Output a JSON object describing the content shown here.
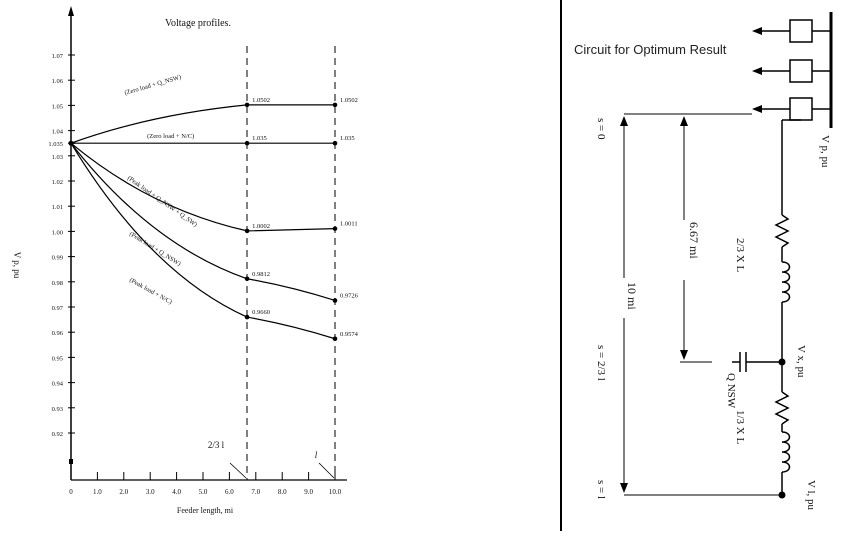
{
  "chart_data": {
    "type": "line",
    "title": "Voltage profiles.",
    "xlabel": "Feeder length, mi",
    "ylabel": "V p, pu",
    "xlim": [
      0,
      10
    ],
    "ylim": [
      0.92,
      1.07
    ],
    "x_ticks": [
      "0",
      "1.0",
      "2.0",
      "3.0",
      "4.0",
      "5.0",
      "6.0",
      "7.0",
      "8.0",
      "9.0",
      "10.0"
    ],
    "y_ticks": [
      "1.07",
      "1.06",
      "1.05",
      "1.04",
      "1.035",
      "1.03",
      "1.02",
      "1.01",
      "1.00",
      "0.99",
      "0.98",
      "0.97",
      "0.96",
      "0.95",
      "0.94",
      "0.93",
      "0.92"
    ],
    "marker_labels": {
      "two_thirds": "2/3 l",
      "l": "l"
    },
    "series": [
      {
        "name": "(Zero load + Q_NSW)",
        "x": [
          0,
          6.67,
          10
        ],
        "y": [
          1.035,
          1.0502,
          1.0502
        ],
        "labels": [
          "",
          "1.0502",
          "1.0502"
        ]
      },
      {
        "name": "(Zero load + N/C)",
        "x": [
          0,
          6.67,
          10
        ],
        "y": [
          1.035,
          1.035,
          1.035
        ],
        "labels": [
          "",
          "1.035",
          "1.035"
        ]
      },
      {
        "name": "(Peak load + Q_NSW + Q_SW)",
        "x": [
          0,
          6.67,
          10
        ],
        "y": [
          1.035,
          1.0002,
          1.0011
        ],
        "labels": [
          "",
          "1.0002",
          "1.0011"
        ]
      },
      {
        "name": "(Peak load + Q_NSW)",
        "x": [
          0,
          6.67,
          10
        ],
        "y": [
          1.035,
          0.9812,
          0.9726
        ],
        "labels": [
          "",
          "0.9812",
          "0.9726"
        ]
      },
      {
        "name": "(Peak load + N/C)",
        "x": [
          0,
          6.67,
          10
        ],
        "y": [
          1.035,
          0.966,
          0.9574
        ],
        "labels": [
          "",
          "0.9660",
          "0.9574"
        ]
      }
    ]
  },
  "circuit": {
    "caption": "Circuit for Optimum Result",
    "label_vp": "V p, pu",
    "label_vx": "V x, pu",
    "label_vl": "V l, pu",
    "label_s0": "s = 0",
    "label_s23": "s = 2/3 l",
    "label_sl": "s = l",
    "label_667": "6.67 mi",
    "label_10": "10 mi",
    "label_x1": "2/3 X L",
    "label_x2": "1/3 X L",
    "label_q": "Q NSW"
  }
}
